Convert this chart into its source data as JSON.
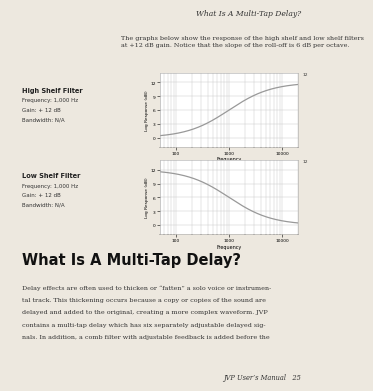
{
  "page_title": "What Is A Multi-Tap Delay?",
  "intro_text": "The graphs below show the response of the high shelf and low shelf filters\nat +12 dB gain. Notice that the slope of the roll-off is 6 dB per octave.",
  "high_shelf_labels": [
    "High Shelf Filter",
    "Frequency: 1,000 Hz",
    "Gain: + 12 dB",
    "Bandwidth: N/A"
  ],
  "low_shelf_labels": [
    "Low Shelf Filter",
    "Frequency: 1,000 Hz",
    "Gain: + 12 dB",
    "Bandwidth: N/A"
  ],
  "section_title": "What Is A Multi-Tap Delay?",
  "body_text_lines": [
    "Delay effects are often used to thicken or “fatten” a solo voice or instrumen-",
    "tal track. This thickening occurs because a copy or copies of the sound are",
    "delayed and added to the original, creating a more complex waveform. JVP",
    "contains a multi-tap delay which has six separately adjustable delayed sig-",
    "nals. In addition, a comb filter with adjustable feedback is added before the"
  ],
  "footer_text": "JVP User’s Manual   25",
  "bg_color": "#ede8df",
  "plot_bg": "#ffffff",
  "line_color": "#999999",
  "grid_color": "#cccccc",
  "border_color": "#555555",
  "freq_min": 50,
  "freq_max": 20000,
  "ylim_min": -2,
  "ylim_max": 14,
  "yticks": [
    0,
    3,
    6,
    9,
    12
  ],
  "xticks_vals": [
    100,
    1000,
    10000
  ],
  "xticks_labels": [
    "100",
    "1000",
    "10000"
  ],
  "xlabel": "Frequency",
  "ylabel": "Log Response (dB)"
}
